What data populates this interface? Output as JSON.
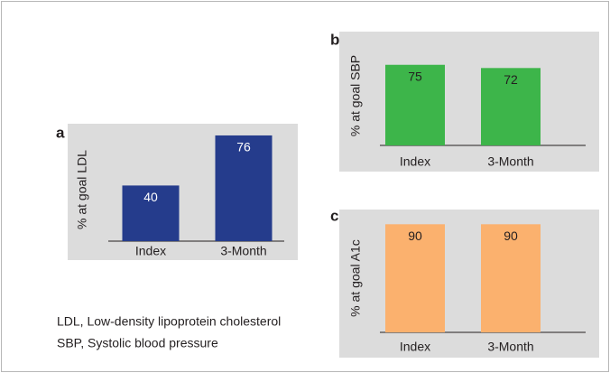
{
  "chart_data": [
    {
      "type": "bar",
      "title": "a",
      "ylabel": "% at goal LDL",
      "categories": [
        "Index",
        "3-Month"
      ],
      "values": [
        40,
        76
      ],
      "color": "#253c8c"
    },
    {
      "type": "bar",
      "title": "b",
      "ylabel": "% at goal SBP",
      "categories": [
        "Index",
        "3-Month"
      ],
      "values": [
        75,
        72
      ],
      "color": "#3db54a"
    },
    {
      "type": "bar",
      "title": "c",
      "ylabel": "% at goal A1c",
      "categories": [
        "Index",
        "3-Month"
      ],
      "values": [
        90,
        90
      ],
      "color": "#fbb16e"
    }
  ],
  "footnotes": [
    "LDL, Low-density lipoprotein cholesterol",
    "SBP, Systolic blood pressure"
  ]
}
